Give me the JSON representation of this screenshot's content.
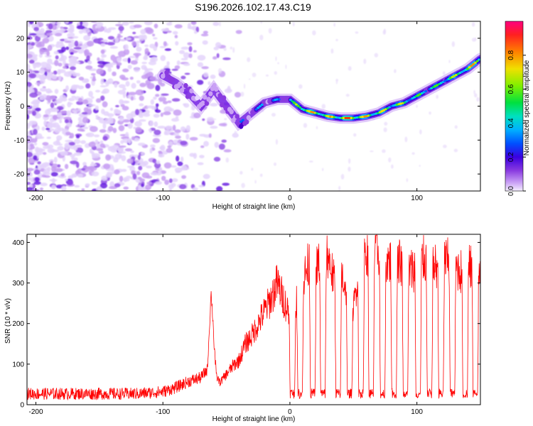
{
  "figure_title": "S196.2026.102.17.43.C19",
  "chart_data": [
    {
      "type": "heatmap",
      "title": "S196.2026.102.17.43.C19",
      "xlabel": "Height of straight line (km)",
      "ylabel": "Frequency (Hz)",
      "xlim": [
        -207,
        150
      ],
      "ylim": [
        -25,
        25
      ],
      "xticks": [
        -200,
        -100,
        0,
        100
      ],
      "yticks": [
        -20,
        -10,
        0,
        10,
        20
      ],
      "colorbar": {
        "label": "Normalized spectral amplitude",
        "range": [
          0,
          1
        ],
        "ticks": [
          0.0,
          0.2,
          0.4,
          0.6,
          0.8
        ],
        "tick_labels": [
          "0.0",
          "0.2",
          "0.4",
          "0.6",
          "0.8"
        ],
        "colors": [
          "#e8d8ff",
          "#c9a0f5",
          "#8a3be0",
          "#4a00d0",
          "#2000ff",
          "#0060ff",
          "#00b0ff",
          "#00e0d0",
          "#00e060",
          "#50f000",
          "#c0f000",
          "#ffe000",
          "#ff9000",
          "#ff3000",
          "#ff0060"
        ]
      },
      "ridge": {
        "x": [
          -100,
          -90,
          -80,
          -70,
          -60,
          -50,
          -40,
          -30,
          -20,
          -10,
          0,
          10,
          20,
          30,
          40,
          50,
          60,
          70,
          80,
          90,
          100,
          110,
          120,
          130,
          140,
          150
        ],
        "y": [
          9,
          7,
          4,
          0,
          5,
          0,
          -5,
          -2,
          1,
          2,
          2,
          -1,
          -2,
          -3,
          -3.5,
          -3.5,
          -3,
          -2,
          0,
          1,
          3,
          5,
          7,
          9,
          11,
          14
        ],
        "amplitude": [
          0.3,
          0.3,
          0.25,
          0.2,
          0.3,
          0.3,
          0.35,
          0.4,
          0.45,
          0.4,
          0.5,
          0.85,
          0.8,
          0.75,
          0.85,
          0.9,
          0.8,
          0.75,
          0.7,
          0.7,
          0.6,
          0.6,
          0.65,
          0.7,
          0.75,
          0.9
        ]
      },
      "background_noise": {
        "x_range": [
          -207,
          -60
        ],
        "amplitude_max": 0.1
      }
    },
    {
      "type": "line",
      "xlabel": "Height of straight line (km)",
      "ylabel": "SNR (10 * v/v)",
      "xlim": [
        -207,
        150
      ],
      "ylim": [
        0,
        420
      ],
      "xticks": [
        -200,
        -100,
        0,
        100
      ],
      "yticks": [
        0,
        100,
        200,
        300,
        400
      ],
      "color": "#ff0000",
      "series": [
        {
          "name": "SNR",
          "x": [
            -207,
            -180,
            -150,
            -120,
            -100,
            -90,
            -80,
            -70,
            -65,
            -62,
            -58,
            -55,
            -50,
            -45,
            -40,
            -35,
            -30,
            -25,
            -20,
            -15,
            -10,
            -5,
            0,
            5,
            10,
            15,
            20,
            25,
            30,
            35,
            40,
            45,
            50,
            55,
            60,
            65,
            70,
            75,
            80,
            85,
            90,
            95,
            100,
            105,
            110,
            115,
            120,
            125,
            130,
            135,
            140,
            145,
            150
          ],
          "y": [
            20,
            20,
            20,
            20,
            25,
            35,
            50,
            60,
            80,
            270,
            70,
            55,
            75,
            95,
            110,
            150,
            170,
            200,
            230,
            260,
            300,
            260,
            220,
            250,
            300,
            350,
            330,
            360,
            370,
            300,
            330,
            280,
            230,
            370,
            380,
            390,
            380,
            360,
            350,
            360,
            340,
            330,
            340,
            360,
            350,
            340,
            360,
            350,
            340,
            330,
            340,
            330,
            300
          ]
        }
      ],
      "dropouts_x": [
        2,
        8,
        18,
        26,
        38,
        47,
        56,
        64,
        73,
        82,
        91,
        101,
        110,
        119,
        128,
        138,
        146
      ]
    }
  ]
}
